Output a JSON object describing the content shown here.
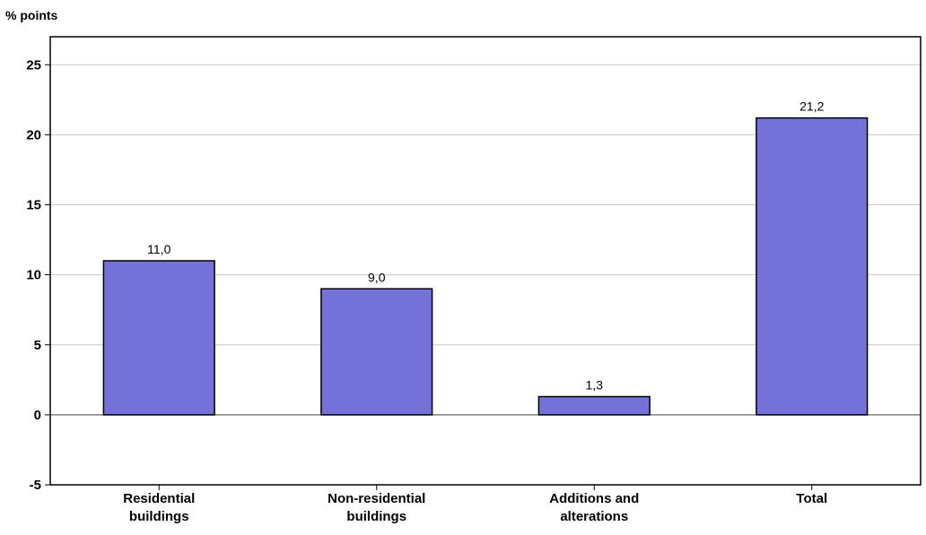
{
  "chart_data": {
    "type": "bar",
    "title": "",
    "ylabel": "% points",
    "xlabel": "",
    "categories": [
      [
        "Residential",
        "buildings"
      ],
      [
        "Non-residential",
        "buildings"
      ],
      [
        "Additions and",
        "alterations"
      ],
      [
        "Total"
      ]
    ],
    "values": [
      11.0,
      9.0,
      1.3,
      21.2
    ],
    "data_labels": [
      "11,0",
      "9,0",
      "1,3",
      "21,2"
    ],
    "ylim": [
      -5,
      27
    ],
    "yticks": [
      -5,
      0,
      5,
      10,
      15,
      20,
      25
    ],
    "grid": true,
    "legend": "none",
    "colors": {
      "bar": "#7472d9",
      "bar_stroke": "#000000",
      "grid": "#c8c8c8",
      "zero_line": "#808080"
    }
  }
}
